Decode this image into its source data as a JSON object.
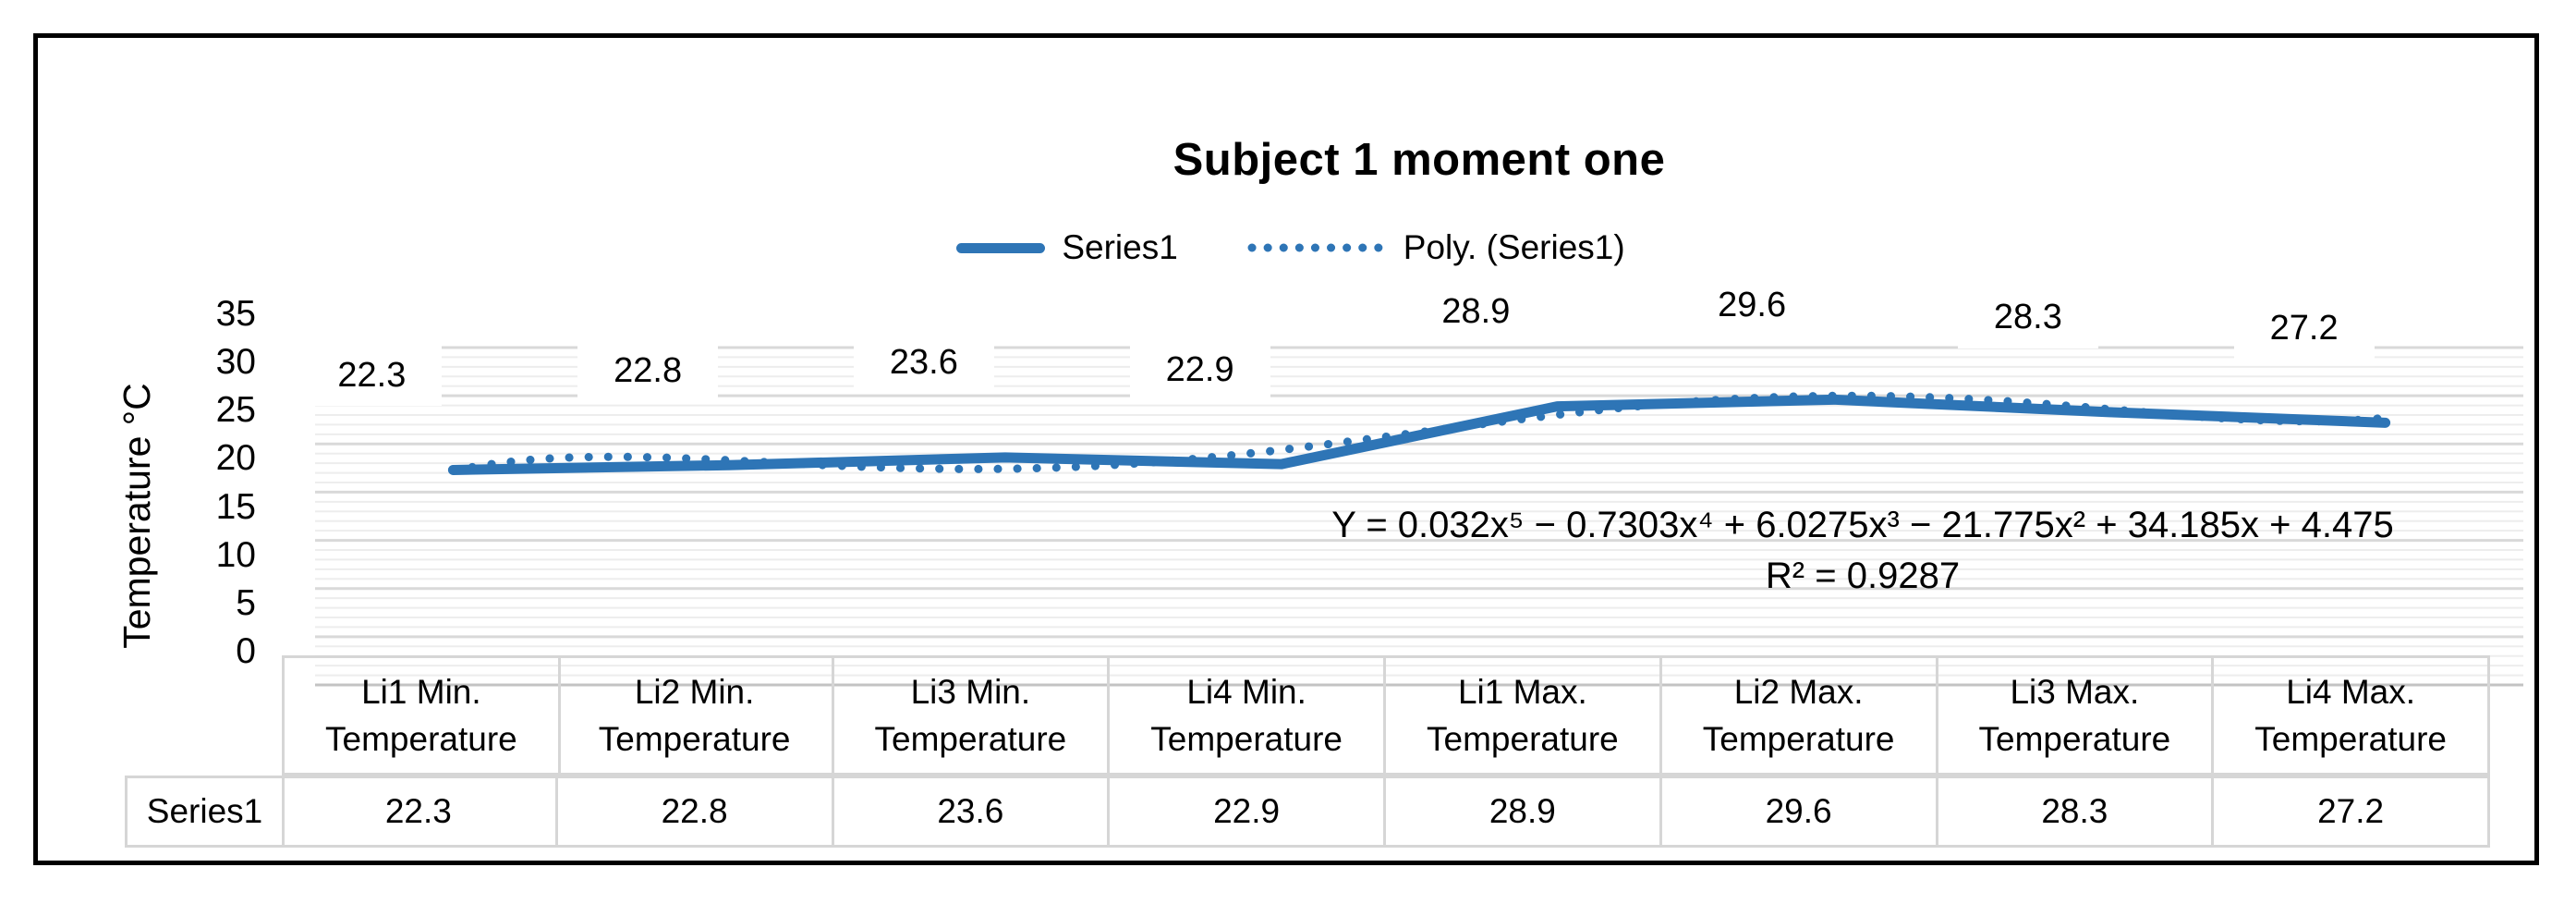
{
  "chart_data": {
    "type": "line",
    "title": "Subject 1 moment one",
    "ylabel": "Temperature °C",
    "xlabel": "",
    "ylim": [
      0,
      35
    ],
    "y_ticks": [
      0,
      5,
      10,
      15,
      20,
      25,
      30,
      35
    ],
    "minor_grid_step": 1,
    "grid": "on",
    "legend_position": "top",
    "categories": [
      "Li1 Min. Temperature",
      "Li2 Min. Temperature",
      "Li3 Min. Temperature",
      "Li4 Min. Temperature",
      "Li1 Max. Temperature",
      "Li2 Max. Temperature",
      "Li3 Max. Temperature",
      "Li4 Max. Temperature"
    ],
    "categories_two_line": [
      [
        "Li1 Min.",
        "Temperature"
      ],
      [
        "Li2 Min.",
        "Temperature"
      ],
      [
        "Li3 Min.",
        "Temperature"
      ],
      [
        "Li4 Min.",
        "Temperature"
      ],
      [
        "Li1 Max.",
        "Temperature"
      ],
      [
        "Li2 Max.",
        "Temperature"
      ],
      [
        "Li3 Max.",
        "Temperature"
      ],
      [
        "Li4 Max.",
        "Temperature"
      ]
    ],
    "series": [
      {
        "name": "Series1",
        "values": [
          22.3,
          22.8,
          23.6,
          22.9,
          28.9,
          29.6,
          28.3,
          27.2
        ],
        "labels": [
          "22.3",
          "22.8",
          "23.6",
          "22.9",
          "28.9",
          "29.6",
          "28.3",
          "27.2"
        ],
        "color": "#2E75B6",
        "style": "solid"
      }
    ],
    "trendline": {
      "name": "Poly. (Series1)",
      "type": "polynomial",
      "order": 5,
      "coefficients": [
        0.032,
        -0.7303,
        6.0275,
        -21.775,
        34.185,
        4.475
      ],
      "equation": "Y = 0.032x⁵ − 0.7303x⁴ + 6.0275x³ − 21.775x² + 34.185x + 4.475",
      "r_squared": "R² = 0.9287",
      "color": "#2E75B6",
      "style": "dotted"
    },
    "data_table": {
      "row_header": "Series1",
      "values": [
        "22.3",
        "22.8",
        "23.6",
        "22.9",
        "28.9",
        "29.6",
        "28.3",
        "27.2"
      ]
    },
    "colors": {
      "series_blue": "#2E75B6",
      "major_grid": "#d9d9d9",
      "minor_grid": "#ededed",
      "axis_line": "#c3c3c3",
      "table_border": "#d6d6d6",
      "frame_border": "#000000"
    }
  }
}
